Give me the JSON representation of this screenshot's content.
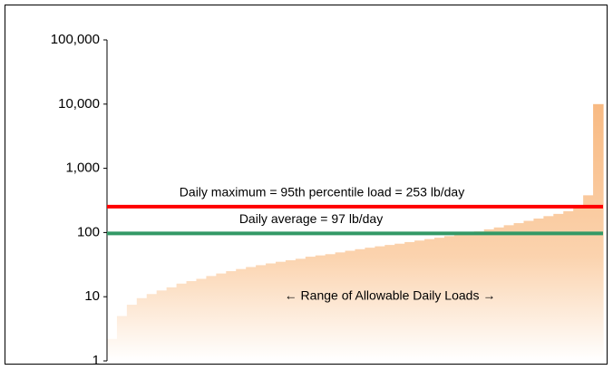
{
  "chart_data": {
    "type": "bar",
    "ylog": true,
    "grid": false,
    "color": "#f8b981",
    "categories": [
      null,
      null,
      null,
      null,
      null,
      null,
      null,
      null,
      null,
      null,
      null,
      null,
      null,
      null,
      null,
      null,
      null,
      null,
      null,
      null,
      null,
      null,
      null,
      null,
      null,
      null,
      null,
      null,
      null,
      null,
      null,
      null,
      null,
      null,
      null,
      null,
      null,
      null,
      null,
      null,
      null,
      null,
      null,
      null,
      null,
      null,
      null,
      null,
      null,
      null
    ],
    "values": [
      2.2,
      5.0,
      7.5,
      9.5,
      11,
      12.5,
      14,
      16,
      17.5,
      19,
      21,
      23,
      25,
      27,
      29,
      31,
      33,
      35,
      37,
      39,
      42,
      44,
      46,
      49,
      52,
      55,
      58,
      61,
      64,
      67,
      71,
      75,
      79,
      83,
      88,
      93,
      98,
      104,
      112,
      120,
      130,
      140,
      152,
      165,
      180,
      195,
      215,
      250,
      380,
      10000
    ],
    "ylim": [
      1,
      100000
    ],
    "yticks": [
      1,
      10,
      100,
      {
        "value": 1000,
        "label": "1,000"
      },
      {
        "value": 10000,
        "label": "10,000"
      },
      {
        "value": 100000,
        "label": "100,000"
      }
    ],
    "reference_lines": [
      {
        "label": "Daily maximum = 95th percentile load = 253 lb/day",
        "value": 253,
        "color": "#ff0000"
      },
      {
        "label": "Daily average = 97 lb/day",
        "value": 97,
        "color": "#339966"
      }
    ],
    "annotation": "← Range of Allowable Daily Loads →"
  }
}
